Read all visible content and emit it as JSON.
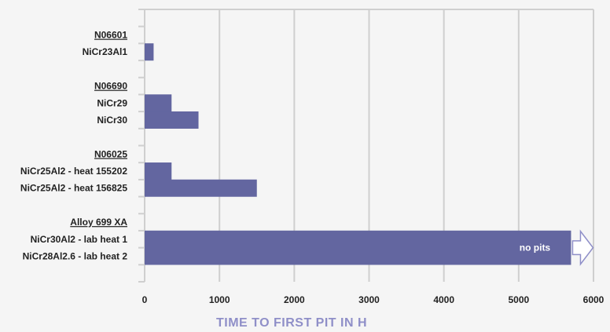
{
  "chart_data": {
    "type": "bar",
    "orientation": "horizontal",
    "xlabel": "TIME TO FIRST PIT IN H",
    "xlim": [
      0,
      6000
    ],
    "xticks": [
      0,
      1000,
      2000,
      3000,
      4000,
      5000,
      6000
    ],
    "grid": true,
    "groups": [
      {
        "heading": "N06601",
        "bars": [
          {
            "label": "NiCr23Al1",
            "value": 120
          }
        ]
      },
      {
        "heading": "N06690",
        "bars": [
          {
            "label": "NiCr29",
            "value": 360
          },
          {
            "label": "NiCr30",
            "value": 720
          }
        ]
      },
      {
        "heading": "N06025",
        "bars": [
          {
            "label": "NiCr25Al2 - heat 155202",
            "value": 360
          },
          {
            "label": "NiCr25Al2 - heat 156825",
            "value": 1500
          }
        ]
      },
      {
        "heading": "Alloy 699 XA",
        "bars": [
          {
            "label": "NiCr30Al2 - lab heat 1",
            "value": 5700
          },
          {
            "label": "NiCr28Al2.6 - lab heat 2",
            "value": 5700
          }
        ],
        "annotation": "no pits",
        "arrow": true
      }
    ],
    "colors": {
      "bar": "#6366a0",
      "axis_title": "#8f8fc8",
      "grid": "#cfcfcf",
      "background": "#f5f5f5"
    }
  }
}
